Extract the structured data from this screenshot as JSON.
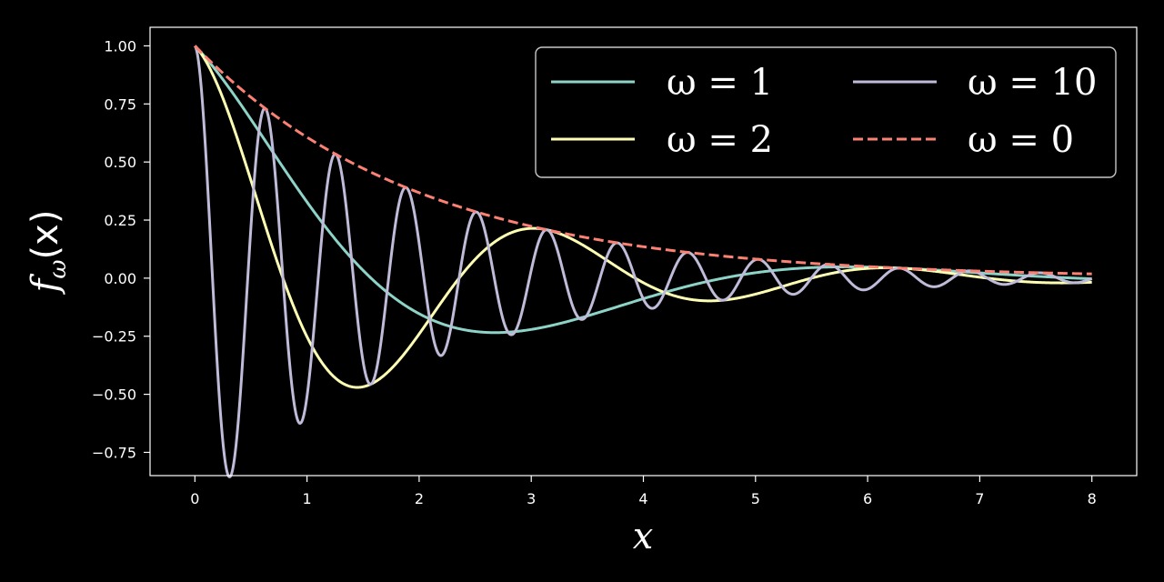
{
  "chart_data": {
    "type": "line",
    "title": "",
    "xlabel": "x",
    "ylabel": "f",
    "ylabel_sub": "ω",
    "ylabel_tail": "(x)",
    "xlim": [
      -0.4,
      8.4
    ],
    "ylim": [
      -0.85,
      1.08
    ],
    "xticks": [
      0,
      1,
      2,
      3,
      4,
      5,
      6,
      7,
      8
    ],
    "xtick_labels": [
      "0",
      "1",
      "2",
      "3",
      "4",
      "5",
      "6",
      "7",
      "8"
    ],
    "yticks": [
      -0.75,
      -0.5,
      -0.25,
      0.0,
      0.25,
      0.5,
      0.75,
      1.0
    ],
    "ytick_labels": [
      "−0.75",
      "−0.50",
      "−0.25",
      "0.00",
      "0.25",
      "0.50",
      "0.75",
      "1.00"
    ],
    "grid": false,
    "legend_position": "top-right",
    "legend_columns": 2,
    "function": "f(x) = exp(-x/2) * cos(ω x)",
    "x_range": [
      0,
      8
    ],
    "series": [
      {
        "name": "ω = 1",
        "omega": 1,
        "color": "#8dd3c7",
        "dash": "solid"
      },
      {
        "name": "ω = 2",
        "omega": 2,
        "color": "#feffb3",
        "dash": "solid"
      },
      {
        "name": "ω = 10",
        "omega": 10,
        "color": "#bfbbd9",
        "dash": "solid"
      },
      {
        "name": "ω = 0",
        "omega": 0,
        "color": "#fa8174",
        "dash": "dashed"
      }
    ]
  }
}
